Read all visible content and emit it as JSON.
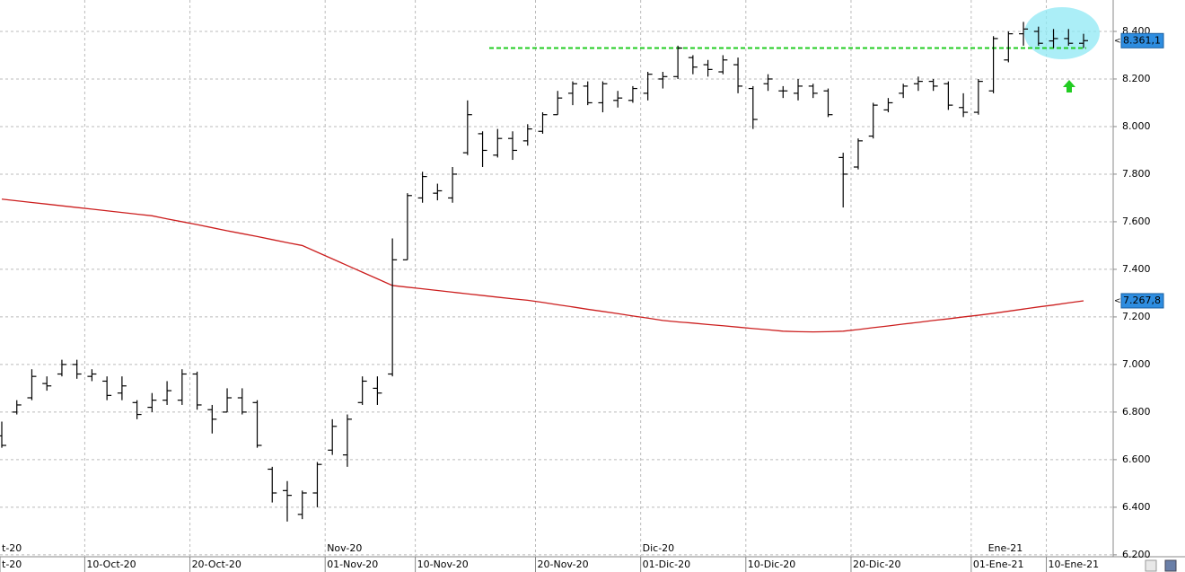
{
  "chart_data": {
    "type": "ohlc",
    "categories": [
      "t-20",
      null,
      null,
      null,
      null,
      null,
      "10-Oct-20",
      null,
      null,
      null,
      null,
      null,
      null,
      "20-Oct-20",
      null,
      null,
      null,
      null,
      null,
      null,
      null,
      null,
      "01-Nov-20",
      null,
      null,
      null,
      null,
      null,
      "10-Nov-20",
      null,
      null,
      null,
      null,
      null,
      null,
      null,
      "20-Nov-20",
      null,
      null,
      null,
      null,
      null,
      null,
      "01-Dic-20",
      null,
      null,
      null,
      null,
      null,
      null,
      "10-Dic-20",
      null,
      null,
      null,
      null,
      null,
      null,
      "20-Dic-20",
      null,
      null,
      null,
      null,
      null,
      null,
      null,
      "01-Ene-21",
      null,
      null,
      null,
      null,
      "10-Ene-21",
      null,
      null
    ],
    "months": [
      "t-20",
      null,
      null,
      null,
      null,
      null,
      null,
      null,
      null,
      null,
      null,
      null,
      null,
      null,
      null,
      null,
      null,
      null,
      null,
      null,
      null,
      null,
      "Nov-20",
      null,
      null,
      null,
      null,
      null,
      null,
      null,
      null,
      null,
      null,
      null,
      null,
      null,
      null,
      null,
      null,
      null,
      null,
      null,
      null,
      "Dic-20",
      null,
      null,
      null,
      null,
      null,
      null,
      null,
      null,
      null,
      null,
      null,
      null,
      null,
      null,
      null,
      null,
      null,
      null,
      null,
      null,
      null,
      null,
      "Ene-21",
      null,
      null,
      null,
      null,
      null,
      null,
      null
    ],
    "open": [
      6700,
      6800,
      6860,
      6920,
      6960,
      7000,
      6950,
      6930,
      6880,
      6840,
      6820,
      6850,
      6850,
      6960,
      6810,
      6800,
      6860,
      6840,
      6560,
      6470,
      6370,
      6460,
      6640,
      6620,
      6840,
      6900,
      6960,
      7440,
      7700,
      7720,
      7700,
      7890,
      7970,
      7880,
      7950,
      7940,
      7980,
      8050,
      8140,
      8170,
      8100,
      8110,
      8110,
      8140,
      8200,
      8210,
      8290,
      8260,
      8230,
      8260,
      8160,
      8180,
      8150,
      8140,
      8170,
      8150,
      7870,
      7830,
      7960,
      8070,
      8140,
      8180,
      8190,
      8180,
      8080,
      8060,
      8150,
      8280,
      8390,
      8400,
      8360,
      8370,
      8350
    ],
    "high": [
      6760,
      6850,
      6980,
      6950,
      7020,
      7020,
      6980,
      6950,
      6950,
      6850,
      6880,
      6930,
      6980,
      6970,
      6830,
      6900,
      6900,
      6850,
      6570,
      6510,
      6470,
      6590,
      6770,
      6790,
      6950,
      6950,
      7530,
      7720,
      7810,
      7760,
      7830,
      8110,
      7980,
      7990,
      7980,
      8010,
      8060,
      8150,
      8190,
      8190,
      8190,
      8150,
      8170,
      8230,
      8230,
      8340,
      8300,
      8280,
      8300,
      8290,
      8170,
      8220,
      8170,
      8200,
      8180,
      8160,
      7890,
      7950,
      8100,
      8120,
      8180,
      8210,
      8200,
      8190,
      8140,
      8200,
      8380,
      8400,
      8440,
      8420,
      8410,
      8410,
      8390
    ],
    "low": [
      6650,
      6790,
      6850,
      6890,
      6950,
      6940,
      6930,
      6850,
      6850,
      6770,
      6800,
      6830,
      6830,
      6810,
      6710,
      6800,
      6790,
      6650,
      6420,
      6340,
      6350,
      6400,
      6620,
      6570,
      6830,
      6830,
      6950,
      7440,
      7680,
      7690,
      7680,
      7880,
      7830,
      7870,
      7860,
      7920,
      7970,
      8050,
      8090,
      8090,
      8060,
      8080,
      8100,
      8110,
      8160,
      8200,
      8220,
      8210,
      8220,
      8140,
      7990,
      8150,
      8120,
      8110,
      8120,
      8040,
      7660,
      7820,
      7950,
      8060,
      8120,
      8150,
      8150,
      8070,
      8040,
      8050,
      8140,
      8270,
      8340,
      8340,
      8330,
      8340,
      8330
    ],
    "close": [
      6660,
      6830,
      6950,
      6910,
      7000,
      6960,
      6960,
      6870,
      6910,
      6790,
      6850,
      6890,
      6960,
      6830,
      6770,
      6860,
      6800,
      6660,
      6460,
      6450,
      6460,
      6580,
      6740,
      6770,
      6930,
      6880,
      7440,
      7710,
      7790,
      7730,
      7800,
      8050,
      7900,
      7950,
      7900,
      7990,
      8050,
      8120,
      8180,
      8100,
      8180,
      8120,
      8160,
      8220,
      8210,
      8330,
      8250,
      8240,
      8280,
      8170,
      8030,
      8200,
      8150,
      8170,
      8140,
      8050,
      7800,
      7940,
      8090,
      8100,
      8170,
      8190,
      8170,
      8090,
      8060,
      8190,
      8370,
      8390,
      8410,
      8350,
      8370,
      8350,
      8361.1
    ],
    "moving_average": {
      "color": "#cc1f1f",
      "values": [
        7695,
        7688,
        7681,
        7674,
        7667,
        7660,
        7653,
        7646,
        7639,
        7632,
        7625,
        7612,
        7600,
        7588,
        7575,
        7562,
        7550,
        7538,
        7525,
        7512,
        7500,
        7472,
        7444,
        7416,
        7388,
        7360,
        7332,
        7325,
        7318,
        7311,
        7304,
        7297,
        7290,
        7283,
        7276,
        7270,
        7261,
        7251,
        7242,
        7232,
        7223,
        7214,
        7204,
        7195,
        7185,
        7179,
        7174,
        7168,
        7163,
        7157,
        7151,
        7146,
        7140,
        7138,
        7137,
        7138,
        7140,
        7147,
        7155,
        7162,
        7170,
        7177,
        7185,
        7192,
        7200,
        7207,
        7215,
        7224,
        7233,
        7242,
        7250,
        7259,
        7267.8
      ]
    },
    "resistance": {
      "value": 8330,
      "color": "#22cc22"
    },
    "last_price": {
      "value": 8361.1,
      "label": "8.361,1"
    },
    "last_average": {
      "value": 7267.8,
      "label": "7.267,8"
    },
    "ylim": [
      6192,
      8532
    ],
    "yticks": [
      {
        "value": 6200,
        "label": "6.200"
      },
      {
        "value": 6400,
        "label": "6.400"
      },
      {
        "value": 6600,
        "label": "6.600"
      },
      {
        "value": 6800,
        "label": "6.800"
      },
      {
        "value": 7000,
        "label": "7.000"
      },
      {
        "value": 7200,
        "label": "7.200"
      },
      {
        "value": 7400,
        "label": "7.400"
      },
      {
        "value": 7600,
        "label": "7.600"
      },
      {
        "value": 7800,
        "label": "7.800"
      },
      {
        "value": 8000,
        "label": "8.000"
      },
      {
        "value": 8200,
        "label": "8.200"
      },
      {
        "value": 8400,
        "label": "8.400"
      }
    ],
    "grid": true
  }
}
